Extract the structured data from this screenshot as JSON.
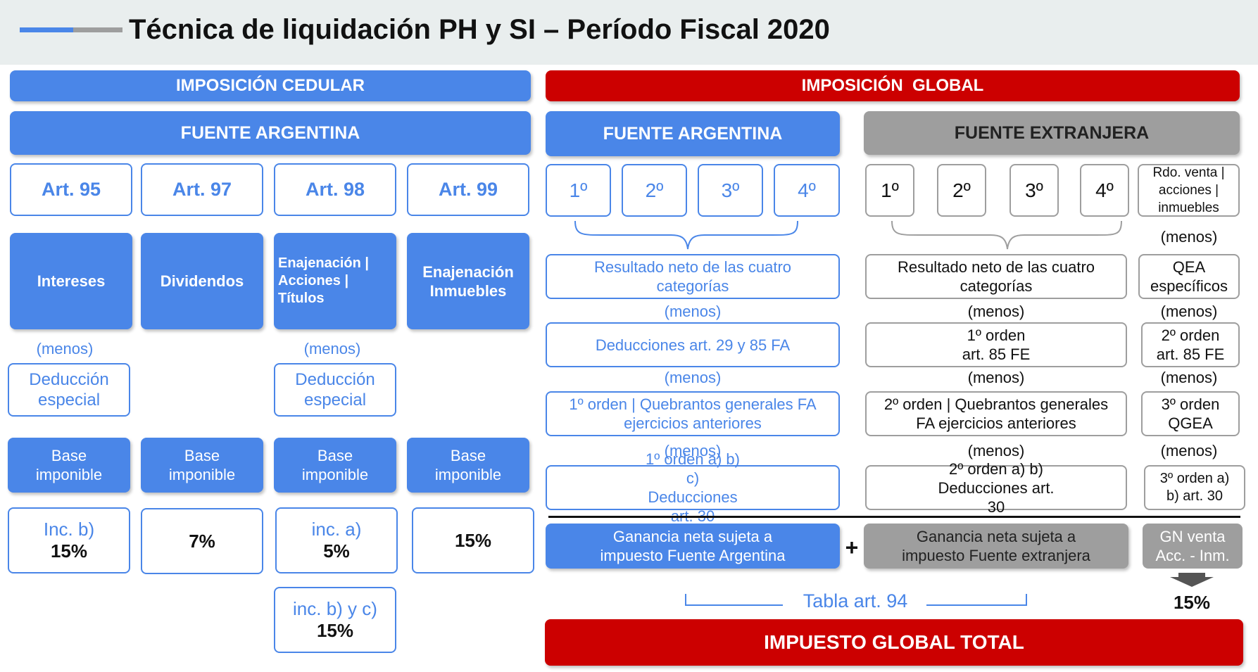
{
  "title": "Técnica de liquidación PH y SI – Período Fiscal 2020",
  "cedular": {
    "banner": "IMPOSICIÓN CEDULAR",
    "fuente": "FUENTE ARGENTINA",
    "articles": [
      "Art. 95",
      "Art. 97",
      "Art. 98",
      "Art. 99"
    ],
    "categories": [
      "Intereses",
      "Dividendos",
      "Enajenación | Acciones | Títulos",
      "Enajenación Inmuebles"
    ],
    "menos": "(menos)",
    "deduccion": "Deducción especial",
    "base": "Base imponible",
    "rates": [
      {
        "top": "Inc. b)",
        "bottom": "15%"
      },
      {
        "top": "",
        "bottom": "7%"
      },
      {
        "top": "inc. a)",
        "bottom": "5%"
      },
      {
        "top": "",
        "bottom": "15%"
      }
    ],
    "extra_rate": {
      "top": "inc. b) y c)",
      "bottom": "15%"
    }
  },
  "global": {
    "banner": "IMPOSICIÓN  GLOBAL",
    "argentina": {
      "header": "FUENTE ARGENTINA",
      "categories": [
        "1º",
        "2º",
        "3º",
        "4º"
      ],
      "resultado": "Resultado neto de las cuatro categorías",
      "menos": "(menos)",
      "deducciones": "Deducciones art. 29 y 85 FA",
      "quebrantos": "1º orden | Quebrantos generales FA ejercicios anteriores",
      "orden_abc": "1º orden a) b) c) Deducciones art. 30",
      "ganancia": "Ganancia neta sujeta a impuesto Fuente Argentina"
    },
    "extranjera": {
      "header": "FUENTE EXTRANJERA",
      "categories": [
        "1º",
        "2º",
        "3º",
        "4º"
      ],
      "rdo_venta": "Rdo. venta | acciones | inmuebles",
      "resultado": "Resultado neto de las cuatro categorías",
      "menos": "(menos)",
      "qea": "QEA específicos",
      "orden1": "1º orden art. 85 FE",
      "orden2": "2º orden art. 85 FE",
      "quebrantos": "2º orden | Quebrantos generales FA ejercicios anteriores",
      "qgea": "3º orden QGEA",
      "orden_ab": "2º orden a) b) Deducciones art. 30",
      "orden3_ab": "3º orden a) b) art. 30",
      "ganancia": "Ganancia neta sujeta a impuesto Fuente extranjera",
      "gn_venta": "GN venta Acc. - Inm.",
      "rate": "15%"
    },
    "plus": "+",
    "tabla": "Tabla art. 94",
    "total": "IMPUESTO GLOBAL TOTAL"
  },
  "colors": {
    "blue": "#4a86e8",
    "red": "#cc0000",
    "gray": "#9e9e9e"
  }
}
